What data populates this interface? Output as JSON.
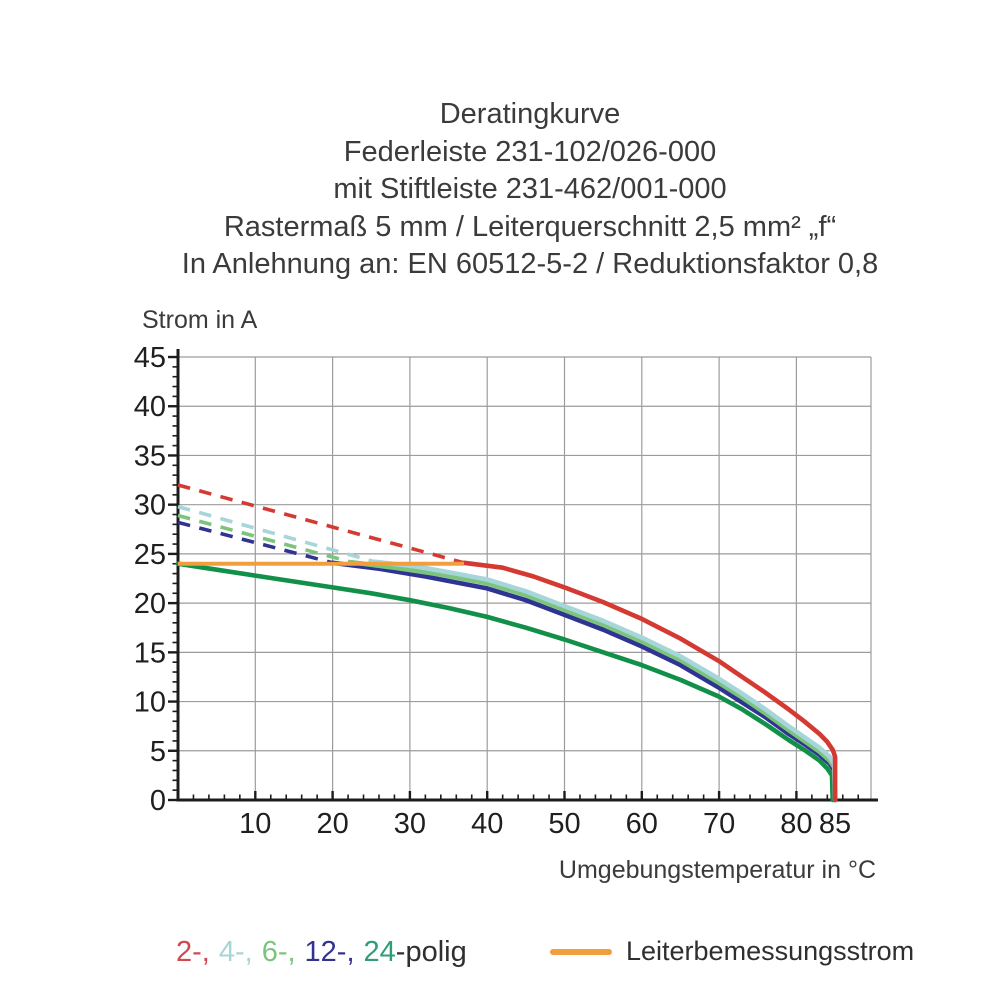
{
  "title": {
    "lines": [
      "Deratingkurve",
      "Federleiste 231-102/026-000",
      "mit Stiftleiste 231-462/001-000",
      "Rastermaß 5 mm / Leiterquerschnitt 2,5 mm² „f“",
      "In Anlehnung an: EN 60512-5-2 / Reduktionsfaktor 0,8"
    ]
  },
  "chart_data": {
    "type": "line",
    "title": "Deratingkurve Federleiste 231-102/026-000 mit Stiftleiste 231-462/001-000",
    "xlabel": "Umgebungstemperatur in °C",
    "ylabel": "Strom in A",
    "xlim": [
      0,
      90
    ],
    "ylim": [
      0,
      45
    ],
    "x_major_ticks": [
      10,
      20,
      30,
      40,
      50,
      60,
      70,
      80,
      85
    ],
    "x_minor_step": 2,
    "y_major_ticks": [
      0,
      5,
      10,
      15,
      20,
      25,
      30,
      35,
      40,
      45
    ],
    "y_minor_step": 1,
    "grid": {
      "x_step": 10,
      "y_step": 5,
      "color": "#9c9c9c",
      "on": true
    },
    "axis_color": "#1c1c1c",
    "rated_current": {
      "label": "Leiterbemessungsstrom",
      "value_a": 24,
      "x_range": [
        0,
        37
      ],
      "color": "#f09f3c"
    },
    "series": [
      {
        "name": "24-polig",
        "color": "#12904a",
        "dashed_above_rated": [],
        "solid": [
          [
            0,
            24
          ],
          [
            5,
            23.4
          ],
          [
            10,
            22.8
          ],
          [
            15,
            22.2
          ],
          [
            20,
            21.6
          ],
          [
            25,
            21.0
          ],
          [
            30,
            20.3
          ],
          [
            35,
            19.5
          ],
          [
            40,
            18.6
          ],
          [
            45,
            17.5
          ],
          [
            50,
            16.3
          ],
          [
            55,
            15.0
          ],
          [
            60,
            13.7
          ],
          [
            65,
            12.2
          ],
          [
            70,
            10.5
          ],
          [
            73,
            9.2
          ],
          [
            76,
            7.7
          ],
          [
            79,
            6.1
          ],
          [
            81,
            5.1
          ],
          [
            83,
            4.0
          ],
          [
            84,
            3.2
          ],
          [
            84.6,
            2.5
          ],
          [
            84.7,
            0
          ]
        ]
      },
      {
        "name": "12-polig",
        "color": "#2f3391",
        "dashed_above_rated": [
          [
            0,
            28.2
          ],
          [
            20,
            24.1
          ]
        ],
        "solid": [
          [
            20,
            24.1
          ],
          [
            26,
            23.5
          ],
          [
            32,
            22.7
          ],
          [
            40,
            21.5
          ],
          [
            45,
            20.3
          ],
          [
            50,
            18.8
          ],
          [
            55,
            17.3
          ],
          [
            60,
            15.6
          ],
          [
            65,
            13.7
          ],
          [
            70,
            11.4
          ],
          [
            73,
            9.9
          ],
          [
            76,
            8.4
          ],
          [
            79,
            6.7
          ],
          [
            81,
            5.7
          ],
          [
            83,
            4.6
          ],
          [
            84.3,
            3.7
          ],
          [
            84.9,
            3.0
          ],
          [
            85,
            0
          ]
        ]
      },
      {
        "name": "6-polig",
        "color": "#7cc47c",
        "dashed_above_rated": [
          [
            0,
            28.9
          ],
          [
            22.5,
            24.15
          ]
        ],
        "solid": [
          [
            22.5,
            24.15
          ],
          [
            28,
            23.6
          ],
          [
            34,
            22.9
          ],
          [
            40,
            22.0
          ],
          [
            45,
            20.8
          ],
          [
            50,
            19.3
          ],
          [
            55,
            17.8
          ],
          [
            60,
            16.1
          ],
          [
            65,
            14.2
          ],
          [
            70,
            11.9
          ],
          [
            73,
            10.4
          ],
          [
            76,
            8.8
          ],
          [
            79,
            7.1
          ],
          [
            81,
            6.0
          ],
          [
            83,
            4.9
          ],
          [
            84.3,
            4.0
          ],
          [
            84.9,
            3.3
          ],
          [
            85,
            0
          ]
        ]
      },
      {
        "name": "4-polig",
        "color": "#a6d5da",
        "dashed_above_rated": [
          [
            0,
            29.8
          ],
          [
            25.5,
            24.2
          ]
        ],
        "solid": [
          [
            25.5,
            24.2
          ],
          [
            31,
            23.7
          ],
          [
            36,
            23.0
          ],
          [
            40,
            22.4
          ],
          [
            45,
            21.2
          ],
          [
            50,
            19.7
          ],
          [
            55,
            18.2
          ],
          [
            60,
            16.5
          ],
          [
            65,
            14.6
          ],
          [
            70,
            12.3
          ],
          [
            73,
            10.8
          ],
          [
            76,
            9.2
          ],
          [
            79,
            7.5
          ],
          [
            81,
            6.4
          ],
          [
            83,
            5.3
          ],
          [
            84.3,
            4.4
          ],
          [
            84.9,
            3.7
          ],
          [
            85,
            0
          ]
        ]
      },
      {
        "name": "2-polig",
        "color": "#d53a32",
        "dashed_above_rated": [
          [
            0,
            32
          ],
          [
            37,
            24.1
          ]
        ],
        "solid": [
          [
            37,
            24.1
          ],
          [
            42,
            23.6
          ],
          [
            46,
            22.7
          ],
          [
            50,
            21.6
          ],
          [
            55,
            20.1
          ],
          [
            60,
            18.4
          ],
          [
            65,
            16.4
          ],
          [
            70,
            14.1
          ],
          [
            73,
            12.5
          ],
          [
            76,
            10.9
          ],
          [
            79,
            9.2
          ],
          [
            81,
            8.0
          ],
          [
            83,
            6.7
          ],
          [
            84,
            5.9
          ],
          [
            84.7,
            5.1
          ],
          [
            85,
            4.4
          ],
          [
            85,
            0
          ]
        ]
      }
    ]
  },
  "legend": {
    "poles": {
      "items": [
        {
          "label": "2-,",
          "color": "#d0494f"
        },
        {
          "label": "4-,",
          "color": "#a6d5da"
        },
        {
          "label": "6-,",
          "color": "#7cc47c"
        },
        {
          "label": "12-,",
          "color": "#32338f"
        },
        {
          "label": "24",
          "color": "#2f9e77"
        }
      ],
      "suffix": "-polig",
      "suffix_color": "#2f2f2f"
    },
    "rated": {
      "label": "Leiterbemessungsstrom",
      "color": "#f09f3c"
    }
  }
}
